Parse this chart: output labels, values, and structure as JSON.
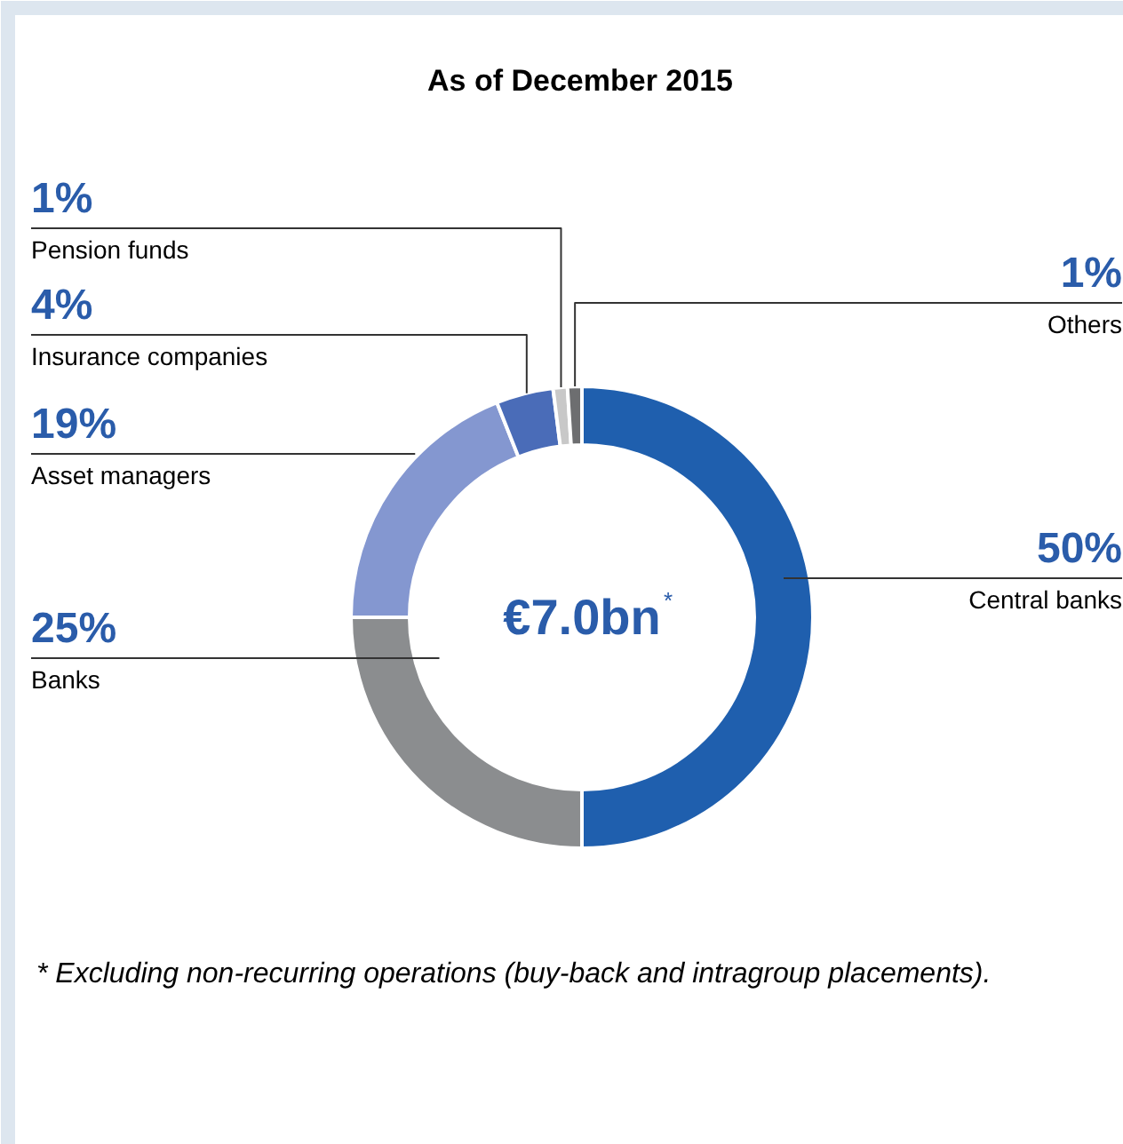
{
  "chart_data": {
    "type": "donut",
    "title": "As of December 2015",
    "categories": [
      "Central banks",
      "Banks",
      "Asset managers",
      "Insurance companies",
      "Pension funds",
      "Others"
    ],
    "values": [
      50,
      25,
      19,
      4,
      1,
      1
    ],
    "value_labels": [
      "50%",
      "25%",
      "19%",
      "4%",
      "1%",
      "1%"
    ],
    "colors": [
      "#1f5fae",
      "#8b8d8f",
      "#8497d0",
      "#4a6cb8",
      "#c8c8c8",
      "#6d6e70"
    ],
    "annotations": [
      "€7.0bn$^{*}$",
      "* Excluding non-recurring operations (buy-back and intragroup placements)."
    ]
  }
}
